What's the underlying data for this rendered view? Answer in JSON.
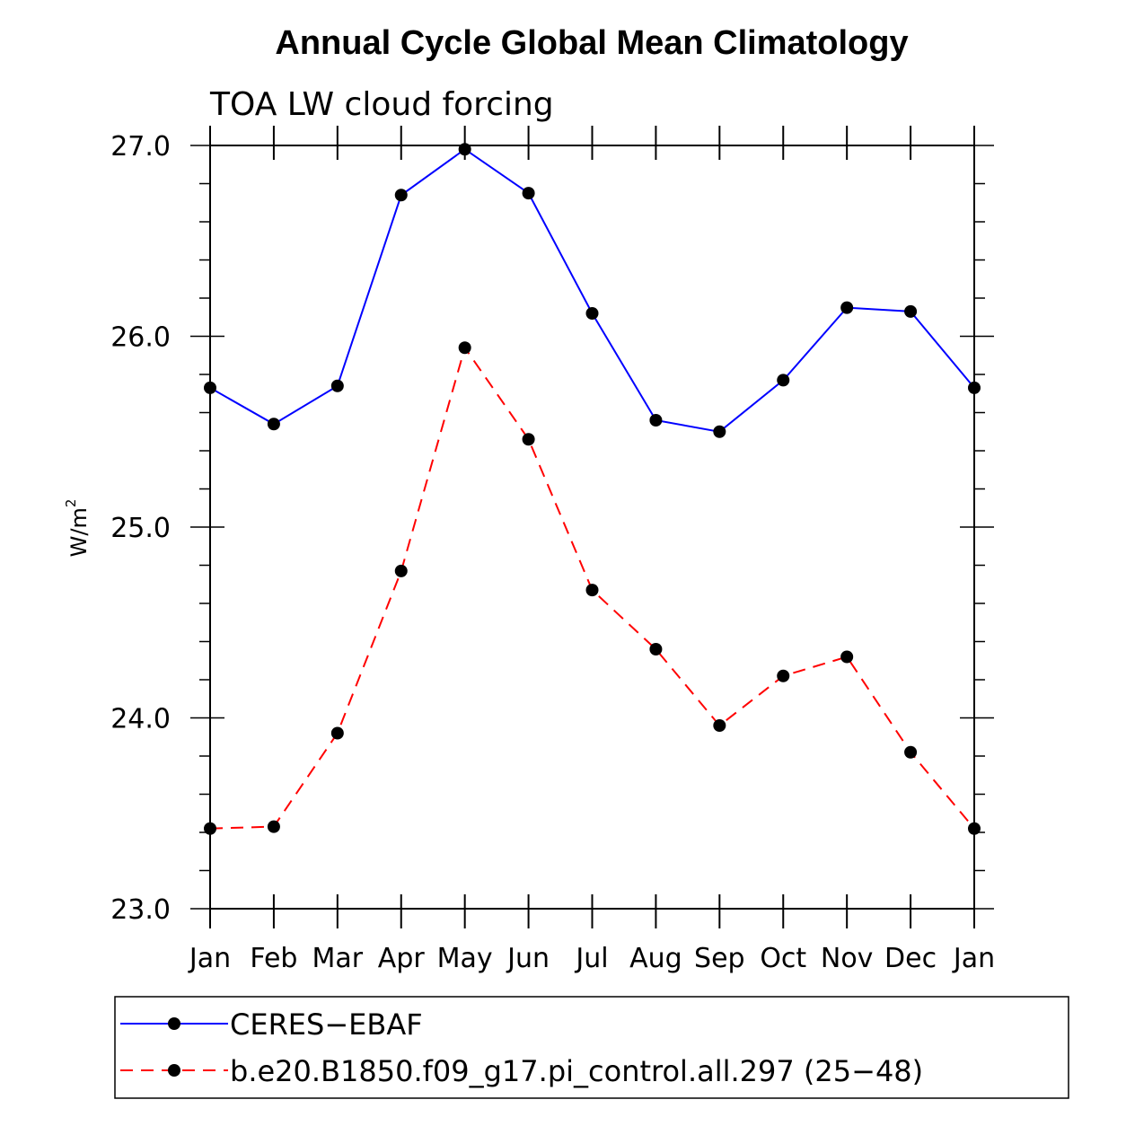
{
  "chart_data": {
    "type": "line",
    "title": "Annual Cycle Global Mean Climatology",
    "subtitle": "TOA LW cloud forcing",
    "ylabel_base": "W/m",
    "ylabel_sup": "2",
    "ylim": [
      23.0,
      27.0
    ],
    "y_ticks": [
      "23.0",
      "24.0",
      "25.0",
      "26.0",
      "27.0"
    ],
    "categories": [
      "Jan",
      "Feb",
      "Mar",
      "Apr",
      "May",
      "Jun",
      "Jul",
      "Aug",
      "Sep",
      "Oct",
      "Nov",
      "Dec",
      "Jan"
    ],
    "series": [
      {
        "name": "CERES−EBAF",
        "color": "#0000ff",
        "dashed": false,
        "values": [
          25.73,
          25.54,
          25.74,
          26.74,
          26.98,
          26.75,
          26.12,
          25.56,
          25.5,
          25.77,
          26.15,
          26.13,
          25.73
        ]
      },
      {
        "name": "b.e20.B1850.f09_g17.pi_control.all.297 (25−48)",
        "color": "#ff0000",
        "dashed": true,
        "values": [
          23.42,
          23.43,
          23.92,
          24.77,
          25.94,
          25.46,
          24.67,
          24.36,
          23.96,
          24.22,
          24.32,
          23.82,
          23.42
        ]
      }
    ],
    "legend_position": "bottom",
    "grid": false
  }
}
